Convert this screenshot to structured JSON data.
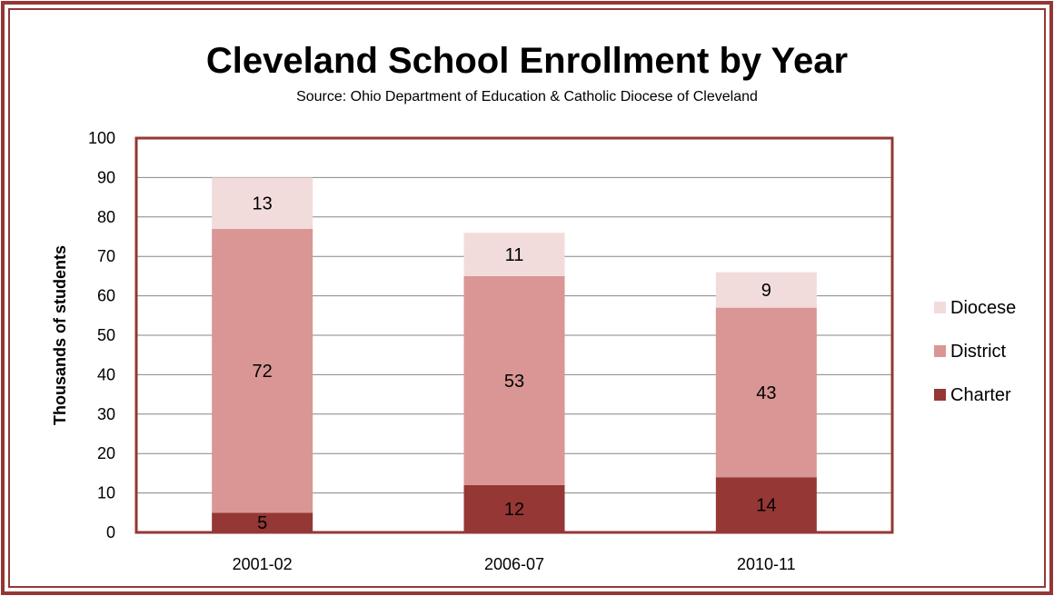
{
  "chart_data": {
    "type": "bar",
    "stacked": true,
    "title": "Cleveland School Enrollment by Year",
    "subtitle": "Source: Ohio Department of Education & Catholic Diocese of Cleveland",
    "xlabel": "",
    "ylabel": "Thousands of students",
    "ylim": [
      0,
      100
    ],
    "yticks": [
      0,
      10,
      20,
      30,
      40,
      50,
      60,
      70,
      80,
      90,
      100
    ],
    "grid": true,
    "legend_position": "right",
    "categories": [
      "2001-02",
      "2006-07",
      "2010-11"
    ],
    "series": [
      {
        "name": "Charter",
        "values": [
          5,
          12,
          14
        ],
        "color": "#953735"
      },
      {
        "name": "District",
        "values": [
          72,
          53,
          43
        ],
        "color": "#d99694"
      },
      {
        "name": "Diocese",
        "values": [
          13,
          11,
          9
        ],
        "color": "#f2dcdb"
      }
    ],
    "colors": {
      "frame": "#953735",
      "plot_border": "#953735",
      "grid": "#868686",
      "text": "#000000"
    }
  }
}
